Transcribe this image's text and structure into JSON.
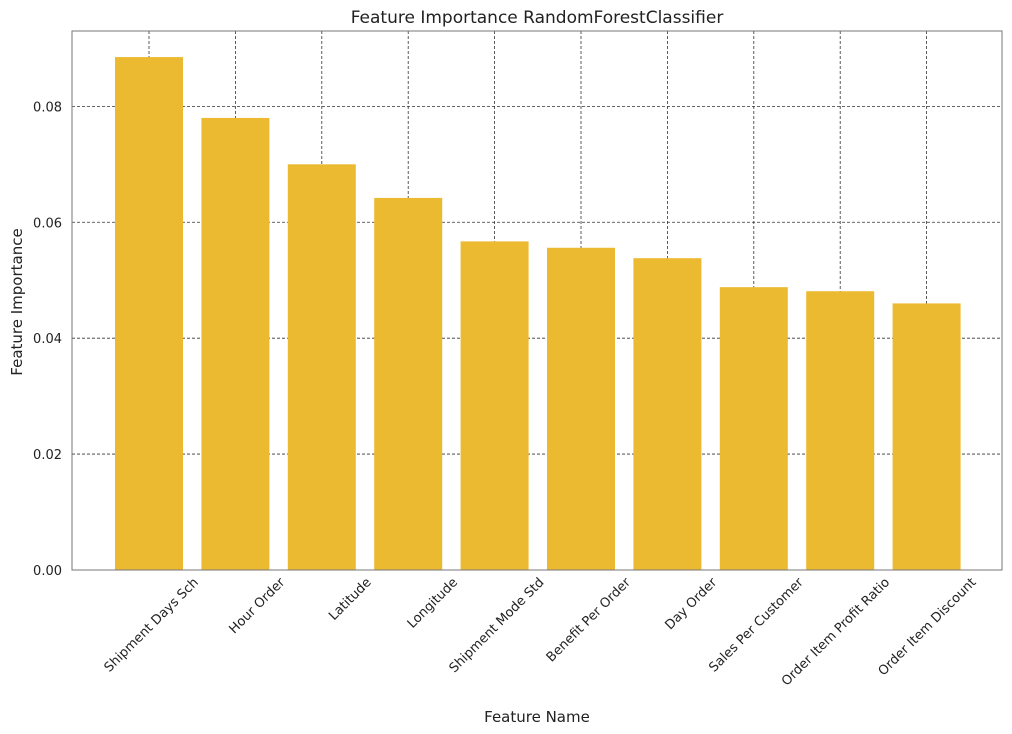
{
  "chart_data": {
    "type": "bar",
    "title": "Feature Importance RandomForestClassifier",
    "xlabel": "Feature Name",
    "ylabel": "Feature Importance",
    "categories": [
      "Shipment Days Sch",
      "Hour Order",
      "Latitude",
      "Longitude",
      "Shipment Mode Std",
      "Benefit Per Order",
      "Day Order",
      "Sales Per Customer",
      "Order Item Profit Ratio",
      "Order Item Discount"
    ],
    "values": [
      0.0885,
      0.078,
      0.07,
      0.0642,
      0.0567,
      0.0556,
      0.0538,
      0.0488,
      0.0481,
      0.046
    ],
    "ylim": [
      0,
      0.093
    ],
    "yticks": [
      "0.00",
      "0.02",
      "0.04",
      "0.06",
      "0.08"
    ],
    "grid": true,
    "bar_color": "#ECBA30"
  }
}
